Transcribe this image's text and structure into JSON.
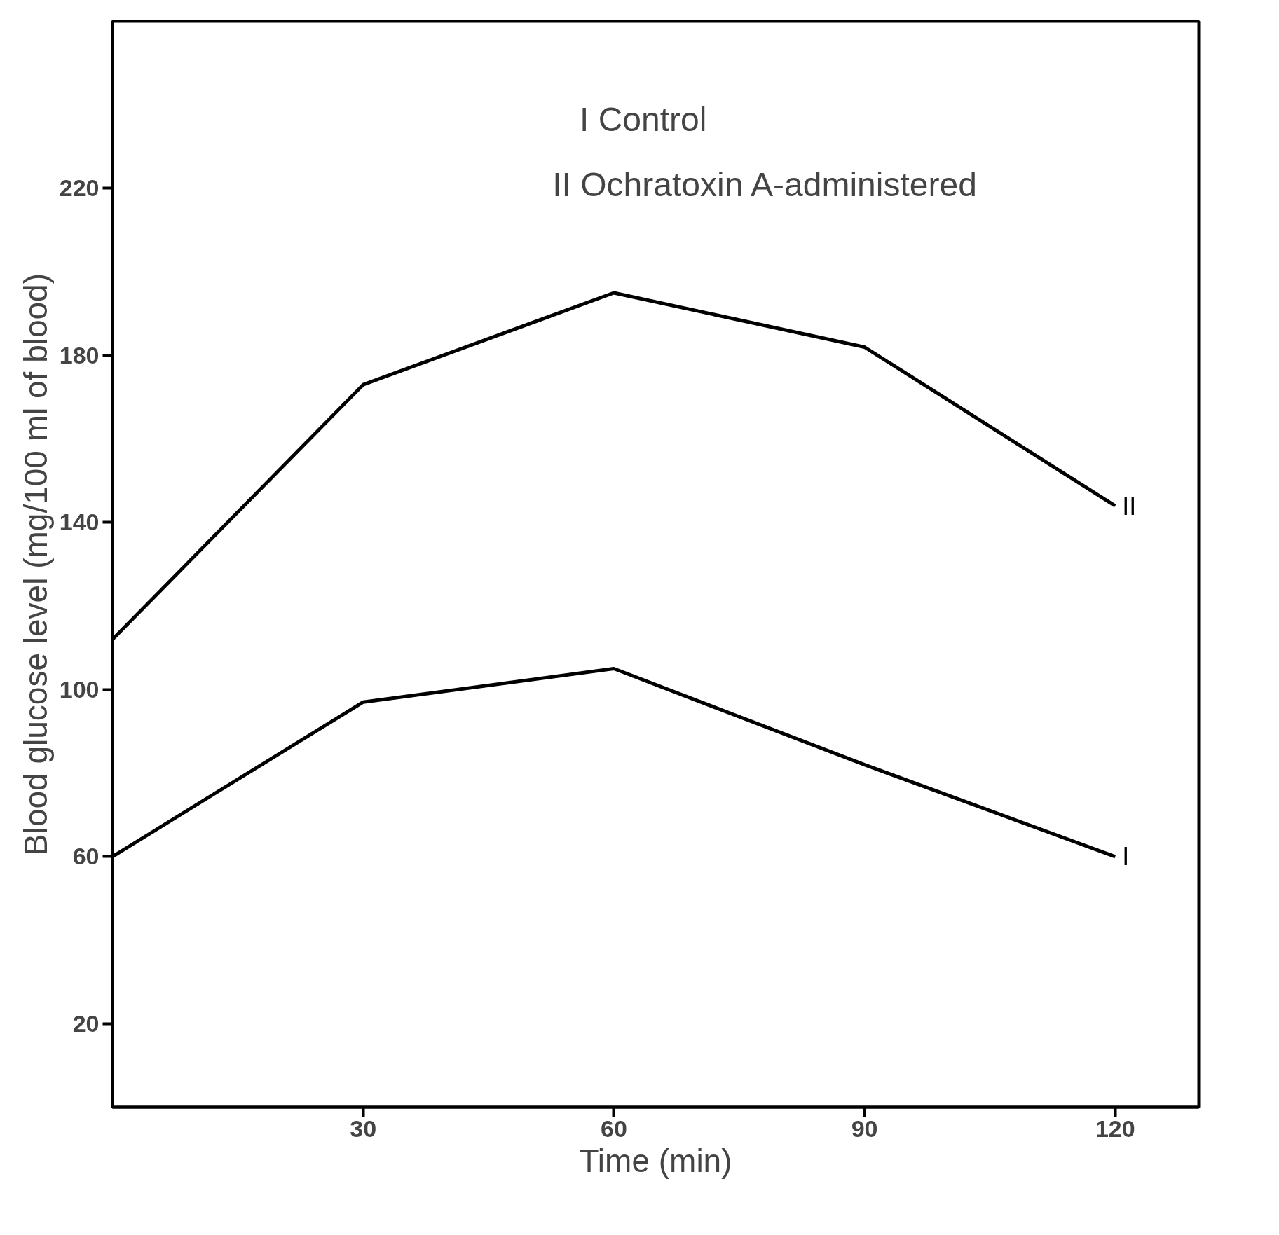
{
  "chart_data": {
    "type": "line",
    "xlabel": "Time (min)",
    "ylabel": "Blood glucose level (mg/100 ml of blood)",
    "x": [
      0,
      30,
      60,
      90,
      120
    ],
    "series": [
      {
        "name": "II",
        "color": "#000000",
        "values": [
          112,
          173,
          195,
          182,
          144
        ]
      },
      {
        "name": "I",
        "color": "#000000",
        "values": [
          60,
          97,
          105,
          82,
          60
        ]
      }
    ],
    "xlim": [
      0,
      130
    ],
    "ylim": [
      0,
      260
    ],
    "xticks": [
      30,
      60,
      90,
      120
    ],
    "yticks": [
      20,
      60,
      100,
      140,
      180,
      220
    ],
    "annotations": [
      "I Control",
      "II Ochratoxin A-administered"
    ],
    "grid": false,
    "marker": "none",
    "line_style": "solid"
  }
}
